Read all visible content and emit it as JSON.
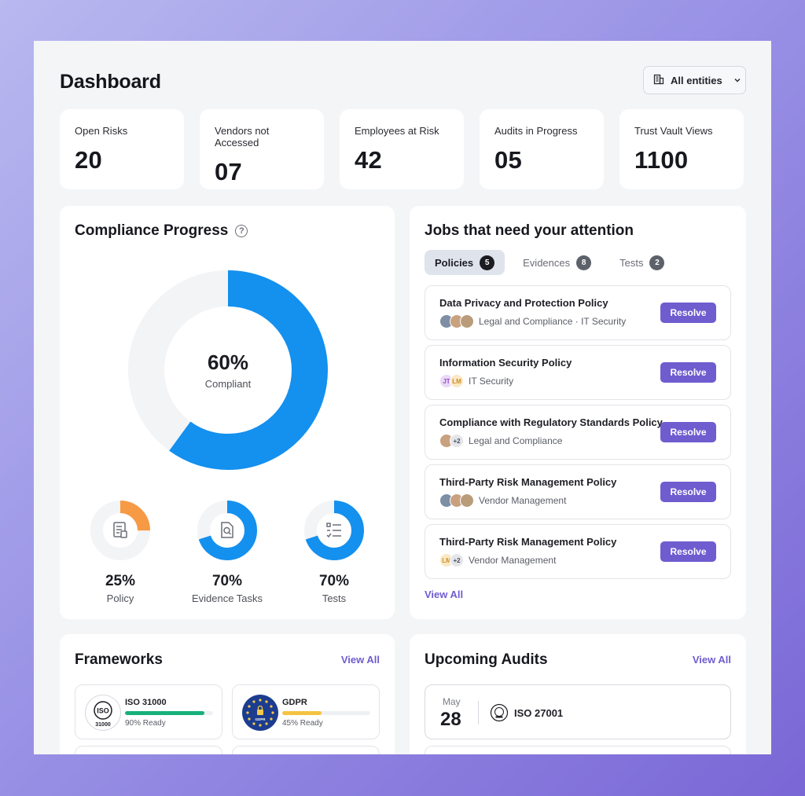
{
  "page_title": "Dashboard",
  "entities_selector": "All entities",
  "stats": [
    {
      "label": "Open Risks",
      "value": "20"
    },
    {
      "label": "Vendors not Accessed",
      "value": "07"
    },
    {
      "label": "Employees at Risk",
      "value": "42"
    },
    {
      "label": "Audits in Progress",
      "value": "05"
    },
    {
      "label": "Trust Vault Views",
      "value": "1100"
    }
  ],
  "compliance": {
    "title": "Compliance Progress",
    "help_icon": "?",
    "percent_label": "60%",
    "percent_value": 0.6,
    "sublabel": "Compliant",
    "breakdown": [
      {
        "pct_label": "25%",
        "value": 0.25,
        "label": "Policy",
        "color": "#f79a45",
        "icon": "document-icon"
      },
      {
        "pct_label": "70%",
        "value": 0.7,
        "label": "Evidence Tasks",
        "color": "#1490ef",
        "icon": "search-file-icon"
      },
      {
        "pct_label": "70%",
        "value": 0.7,
        "label": "Tests",
        "color": "#1490ef",
        "icon": "checklist-icon"
      }
    ],
    "accent": "#1490ef",
    "track": "#f3f4f6"
  },
  "jobs": {
    "title": "Jobs that need your attention",
    "tabs": [
      {
        "label": "Policies",
        "count": "5"
      },
      {
        "label": "Evidences",
        "count": "8"
      },
      {
        "label": "Tests",
        "count": "2"
      }
    ],
    "items": [
      {
        "title": "Data Privacy and Protection Policy",
        "meta": "Legal and Compliance · IT Security",
        "action": "Resolve"
      },
      {
        "title": "Information Security Policy",
        "meta": "IT Security",
        "action": "Resolve",
        "initials": [
          "JT",
          "LM"
        ]
      },
      {
        "title": "Compliance with Regulatory Standards Policy",
        "meta": "Legal and Compliance",
        "action": "Resolve",
        "extra": "+2"
      },
      {
        "title": "Third-Party Risk Management Policy",
        "meta": "Vendor Management",
        "action": "Resolve"
      },
      {
        "title": "Third-Party Risk Management Policy",
        "meta": "Vendor Management",
        "action": "Resolve",
        "initials": [
          "LM"
        ],
        "extra": "+2"
      }
    ],
    "view_all": "View All"
  },
  "frameworks": {
    "title": "Frameworks",
    "view_all": "View All",
    "items": [
      {
        "name": "ISO 31000",
        "ready": "90% Ready",
        "value": 0.9,
        "color": "#18b07b",
        "logo_top": "ISO",
        "logo_bottom": "31000"
      },
      {
        "name": "GDPR",
        "ready": "45% Ready",
        "value": 0.45,
        "color": "#f5c342",
        "logo_text": "GDPR"
      }
    ]
  },
  "audits": {
    "title": "Upcoming Audits",
    "view_all": "View All",
    "items": [
      {
        "month": "May",
        "day": "28",
        "name": "ISO 27001"
      }
    ]
  },
  "brand": {
    "primary": "#6f5ccf"
  }
}
